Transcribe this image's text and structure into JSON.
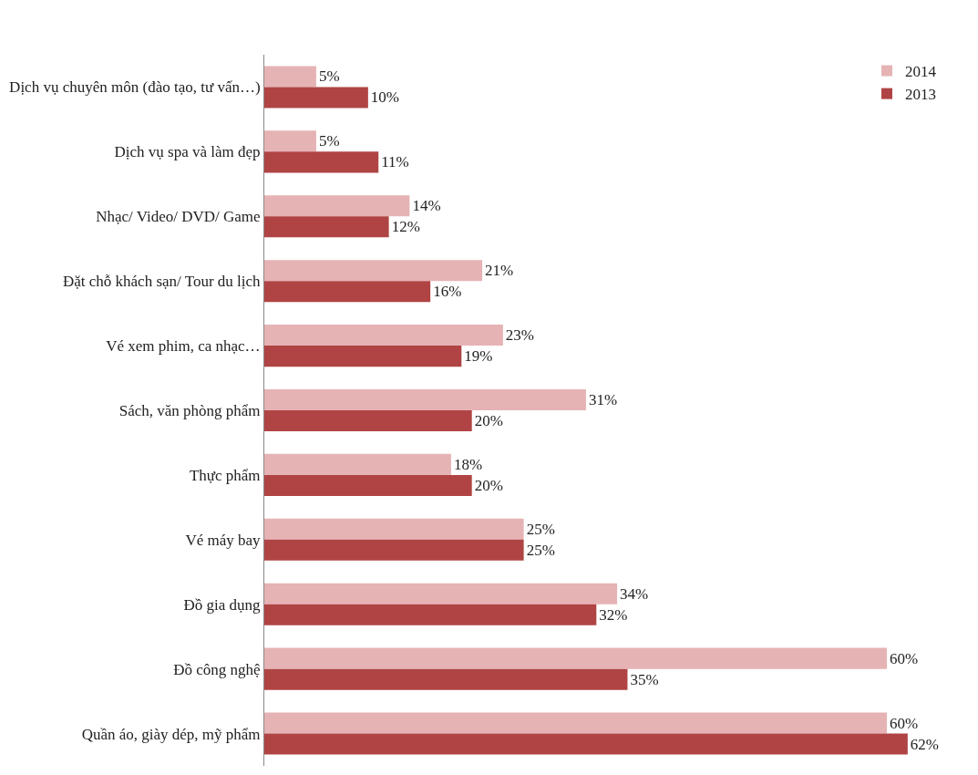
{
  "chart_data": {
    "type": "bar",
    "orientation": "horizontal",
    "legend": "top right",
    "categories": [
      "Dịch vụ chuyên môn (đào tạo, tư vấn…)",
      "Dịch vụ spa và làm đẹp",
      "Nhạc/ Video/ DVD/ Game",
      "Đặt chỗ khách sạn/ Tour du lịch",
      "Vé xem phim, ca nhạc…",
      "Sách, văn phòng phẩm",
      "Thực phẩm",
      "Vé máy bay",
      "Đồ gia dụng",
      "Đồ công nghệ",
      "Quần áo, giày dép, mỹ phẩm"
    ],
    "series": [
      {
        "name": "2014",
        "color": "#e6b3b5",
        "values": [
          5,
          5,
          14,
          21,
          23,
          31,
          18,
          25,
          34,
          60,
          60
        ],
        "value_labels": [
          "5%",
          "5%",
          "14%",
          "21%",
          "23%",
          "31%",
          "18%",
          "25%",
          "34%",
          "60%",
          "60%"
        ]
      },
      {
        "name": "2013",
        "color": "#b04444",
        "values": [
          10,
          11,
          12,
          16,
          19,
          20,
          20,
          25,
          32,
          35,
          62
        ],
        "value_labels": [
          "10%",
          "11%",
          "12%",
          "16%",
          "19%",
          "20%",
          "20%",
          "25%",
          "32%",
          "35%",
          "62%"
        ]
      }
    ]
  }
}
